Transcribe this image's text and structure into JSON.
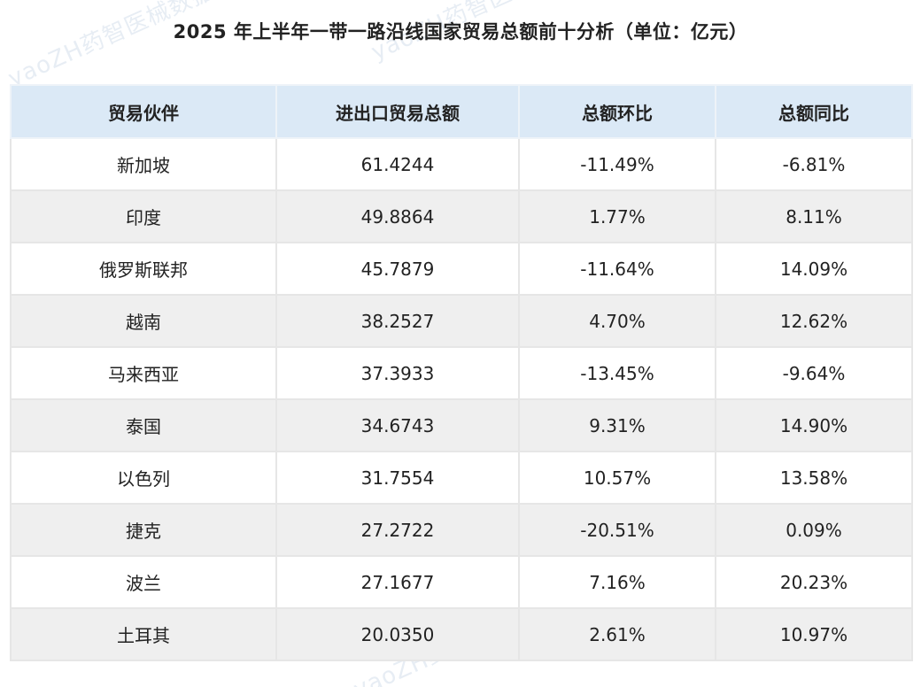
{
  "title": "2025 年上半年一带一路沿线国家贸易总额前十分析（单位：亿元）",
  "watermark": "yaoZH药智医械数据",
  "chart_data": {
    "type": "table",
    "title": "2025 年上半年一带一路沿线国家贸易总额前十分析（单位：亿元）",
    "columns": [
      "贸易伙伴",
      "进出口贸易总额",
      "总额环比",
      "总额同比"
    ],
    "rows": [
      [
        "新加坡",
        "61.4244",
        "-11.49%",
        "-6.81%"
      ],
      [
        "印度",
        "49.8864",
        "1.77%",
        "8.11%"
      ],
      [
        "俄罗斯联邦",
        "45.7879",
        "-11.64%",
        "14.09%"
      ],
      [
        "越南",
        "38.2527",
        "4.70%",
        "12.62%"
      ],
      [
        "马来西亚",
        "37.3933",
        "-13.45%",
        "-9.64%"
      ],
      [
        "泰国",
        "34.6743",
        "9.31%",
        "14.90%"
      ],
      [
        "以色列",
        "31.7554",
        "10.57%",
        "13.58%"
      ],
      [
        "捷克",
        "27.2722",
        "-20.51%",
        "0.09%"
      ],
      [
        "波兰",
        "27.1677",
        "7.16%",
        "20.23%"
      ],
      [
        "土耳其",
        "20.0350",
        "2.61%",
        "10.97%"
      ]
    ]
  },
  "colors": {
    "header_bg": "#dbe9f6",
    "row_alt_bg": "#efefef",
    "border": "#e6e6e6",
    "text": "#222222"
  }
}
